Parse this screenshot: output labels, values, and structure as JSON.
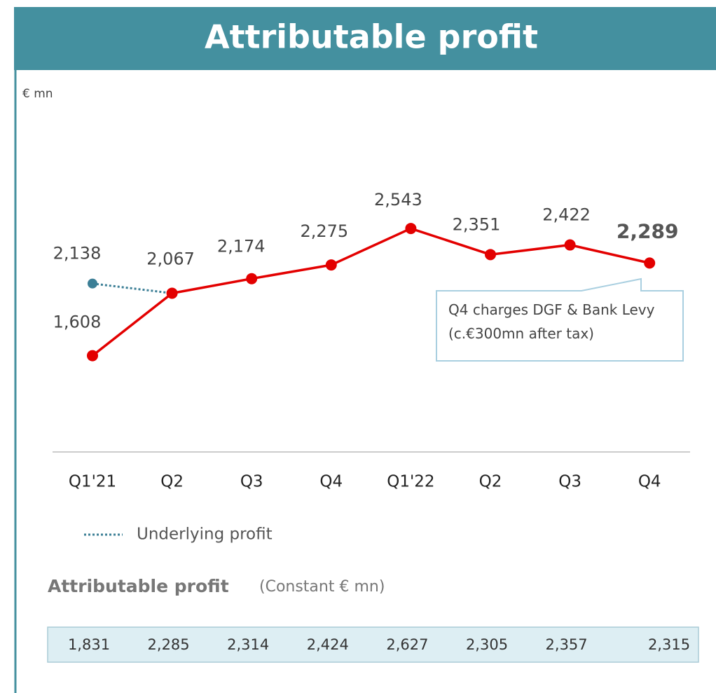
{
  "header": {
    "title": "Attributable profit"
  },
  "chart_data": {
    "type": "line",
    "unit_label": "€ mn",
    "categories": [
      "Q1'21",
      "Q2",
      "Q3",
      "Q4",
      "Q1'22",
      "Q2",
      "Q3",
      "Q4"
    ],
    "ylim": [
      900,
      3450
    ],
    "series": [
      {
        "color": "#e30000",
        "style": "solid",
        "values": [
          1608,
          2067,
          2174,
          2275,
          2543,
          2351,
          2422,
          2289
        ],
        "value_labels": [
          "1,608",
          "2,067",
          "2,174",
          "2,275",
          "2,543",
          "2,351",
          "2,422",
          "2,289"
        ]
      },
      {
        "name": "Underlying profit",
        "color": "#3c7f96",
        "style": "dotted",
        "values": [
          2138,
          2067,
          null,
          null,
          null,
          null,
          null,
          null
        ],
        "value_labels": [
          "2,138",
          null,
          null,
          null,
          null,
          null,
          null,
          null
        ]
      }
    ],
    "annotation": "Q4 charges DGF & Bank Levy (c.€300mn after tax)"
  },
  "table": {
    "title": "Attributable profit",
    "subtitle": "(Constant € mn)",
    "values": [
      "1,831",
      "2,285",
      "2,314",
      "2,424",
      "2,627",
      "2,305",
      "2,357",
      "2,315"
    ]
  }
}
